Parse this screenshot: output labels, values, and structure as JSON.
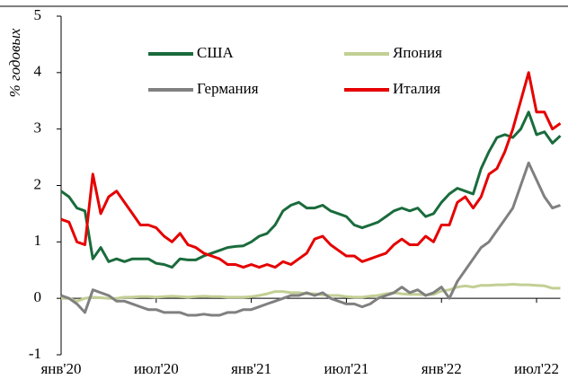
{
  "chart_data": {
    "type": "line",
    "y_label": "% годовых",
    "categories": [
      "янв'20",
      null,
      null,
      null,
      null,
      null,
      null,
      null,
      null,
      null,
      null,
      null,
      "июл'20",
      null,
      null,
      null,
      null,
      null,
      null,
      null,
      null,
      null,
      null,
      null,
      "янв'21",
      null,
      null,
      null,
      null,
      null,
      null,
      null,
      null,
      null,
      null,
      null,
      "июл'21",
      null,
      null,
      null,
      null,
      null,
      null,
      null,
      null,
      null,
      null,
      null,
      "янв'22",
      null,
      null,
      null,
      null,
      null,
      null,
      null,
      null,
      null,
      null,
      null,
      "июл'22",
      null,
      null,
      null
    ],
    "ylim": [
      -1,
      5
    ],
    "yticks": [
      -1,
      0,
      1,
      2,
      3,
      4,
      5
    ],
    "series": [
      {
        "name": "США",
        "color": "#1a6b3c",
        "values": [
          1.9,
          1.8,
          1.6,
          1.55,
          0.7,
          0.9,
          0.65,
          0.7,
          0.65,
          0.7,
          0.7,
          0.7,
          0.62,
          0.6,
          0.55,
          0.7,
          0.68,
          0.68,
          0.75,
          0.8,
          0.85,
          0.9,
          0.92,
          0.93,
          1.0,
          1.1,
          1.15,
          1.3,
          1.55,
          1.65,
          1.7,
          1.6,
          1.6,
          1.65,
          1.55,
          1.5,
          1.45,
          1.3,
          1.25,
          1.3,
          1.35,
          1.45,
          1.55,
          1.6,
          1.55,
          1.6,
          1.45,
          1.5,
          1.7,
          1.85,
          1.95,
          1.9,
          1.85,
          2.3,
          2.6,
          2.85,
          2.9,
          2.85,
          3.0,
          3.3,
          2.9,
          2.95,
          2.75,
          2.88
        ]
      },
      {
        "name": "Япония",
        "color": "#c2cf94",
        "values": [
          0,
          0,
          -0.05,
          0,
          0.02,
          0.01,
          0,
          0,
          0.02,
          0.02,
          0.03,
          0.03,
          0.02,
          0.03,
          0.04,
          0.03,
          0.02,
          0.03,
          0.04,
          0.03,
          0.03,
          0.02,
          0.02,
          0.02,
          0.03,
          0.05,
          0.08,
          0.12,
          0.12,
          0.1,
          0.1,
          0.08,
          0.08,
          0.06,
          0.05,
          0.05,
          0.03,
          0.02,
          0.02,
          0.04,
          0.05,
          0.08,
          0.1,
          0.08,
          0.07,
          0.07,
          0.06,
          0.07,
          0.13,
          0.15,
          0.2,
          0.22,
          0.2,
          0.23,
          0.23,
          0.24,
          0.24,
          0.25,
          0.24,
          0.24,
          0.23,
          0.22,
          0.18,
          0.18
        ]
      },
      {
        "name": "Германия",
        "color": "#808080",
        "values": [
          0.05,
          0.0,
          -0.1,
          -0.25,
          0.15,
          0.1,
          0.05,
          -0.05,
          -0.05,
          -0.1,
          -0.15,
          -0.2,
          -0.2,
          -0.25,
          -0.25,
          -0.25,
          -0.3,
          -0.3,
          -0.28,
          -0.3,
          -0.3,
          -0.25,
          -0.25,
          -0.2,
          -0.2,
          -0.15,
          -0.1,
          -0.05,
          0.0,
          0.05,
          0.05,
          0.1,
          0.05,
          0.1,
          0.0,
          -0.05,
          -0.1,
          -0.1,
          -0.15,
          -0.1,
          0.0,
          0.05,
          0.1,
          0.2,
          0.1,
          0.15,
          0.05,
          0.1,
          0.2,
          0.0,
          0.3,
          0.5,
          0.7,
          0.9,
          1.0,
          1.2,
          1.4,
          1.6,
          2.0,
          2.4,
          2.1,
          1.8,
          1.6,
          1.65
        ]
      },
      {
        "name": "Италия",
        "color": "#e60000",
        "values": [
          1.4,
          1.35,
          1.0,
          0.95,
          2.2,
          1.5,
          1.8,
          1.9,
          1.7,
          1.5,
          1.3,
          1.3,
          1.25,
          1.1,
          1.0,
          1.15,
          0.95,
          0.9,
          0.8,
          0.75,
          0.7,
          0.6,
          0.6,
          0.55,
          0.6,
          0.55,
          0.6,
          0.55,
          0.65,
          0.6,
          0.7,
          0.8,
          1.05,
          1.1,
          0.95,
          0.85,
          0.75,
          0.75,
          0.65,
          0.7,
          0.75,
          0.8,
          0.95,
          1.05,
          0.95,
          0.95,
          1.1,
          1.0,
          1.3,
          1.3,
          1.7,
          1.8,
          1.6,
          1.8,
          2.2,
          2.3,
          2.6,
          3.0,
          3.5,
          4.0,
          3.3,
          3.3,
          3.0,
          3.1
        ]
      }
    ]
  }
}
